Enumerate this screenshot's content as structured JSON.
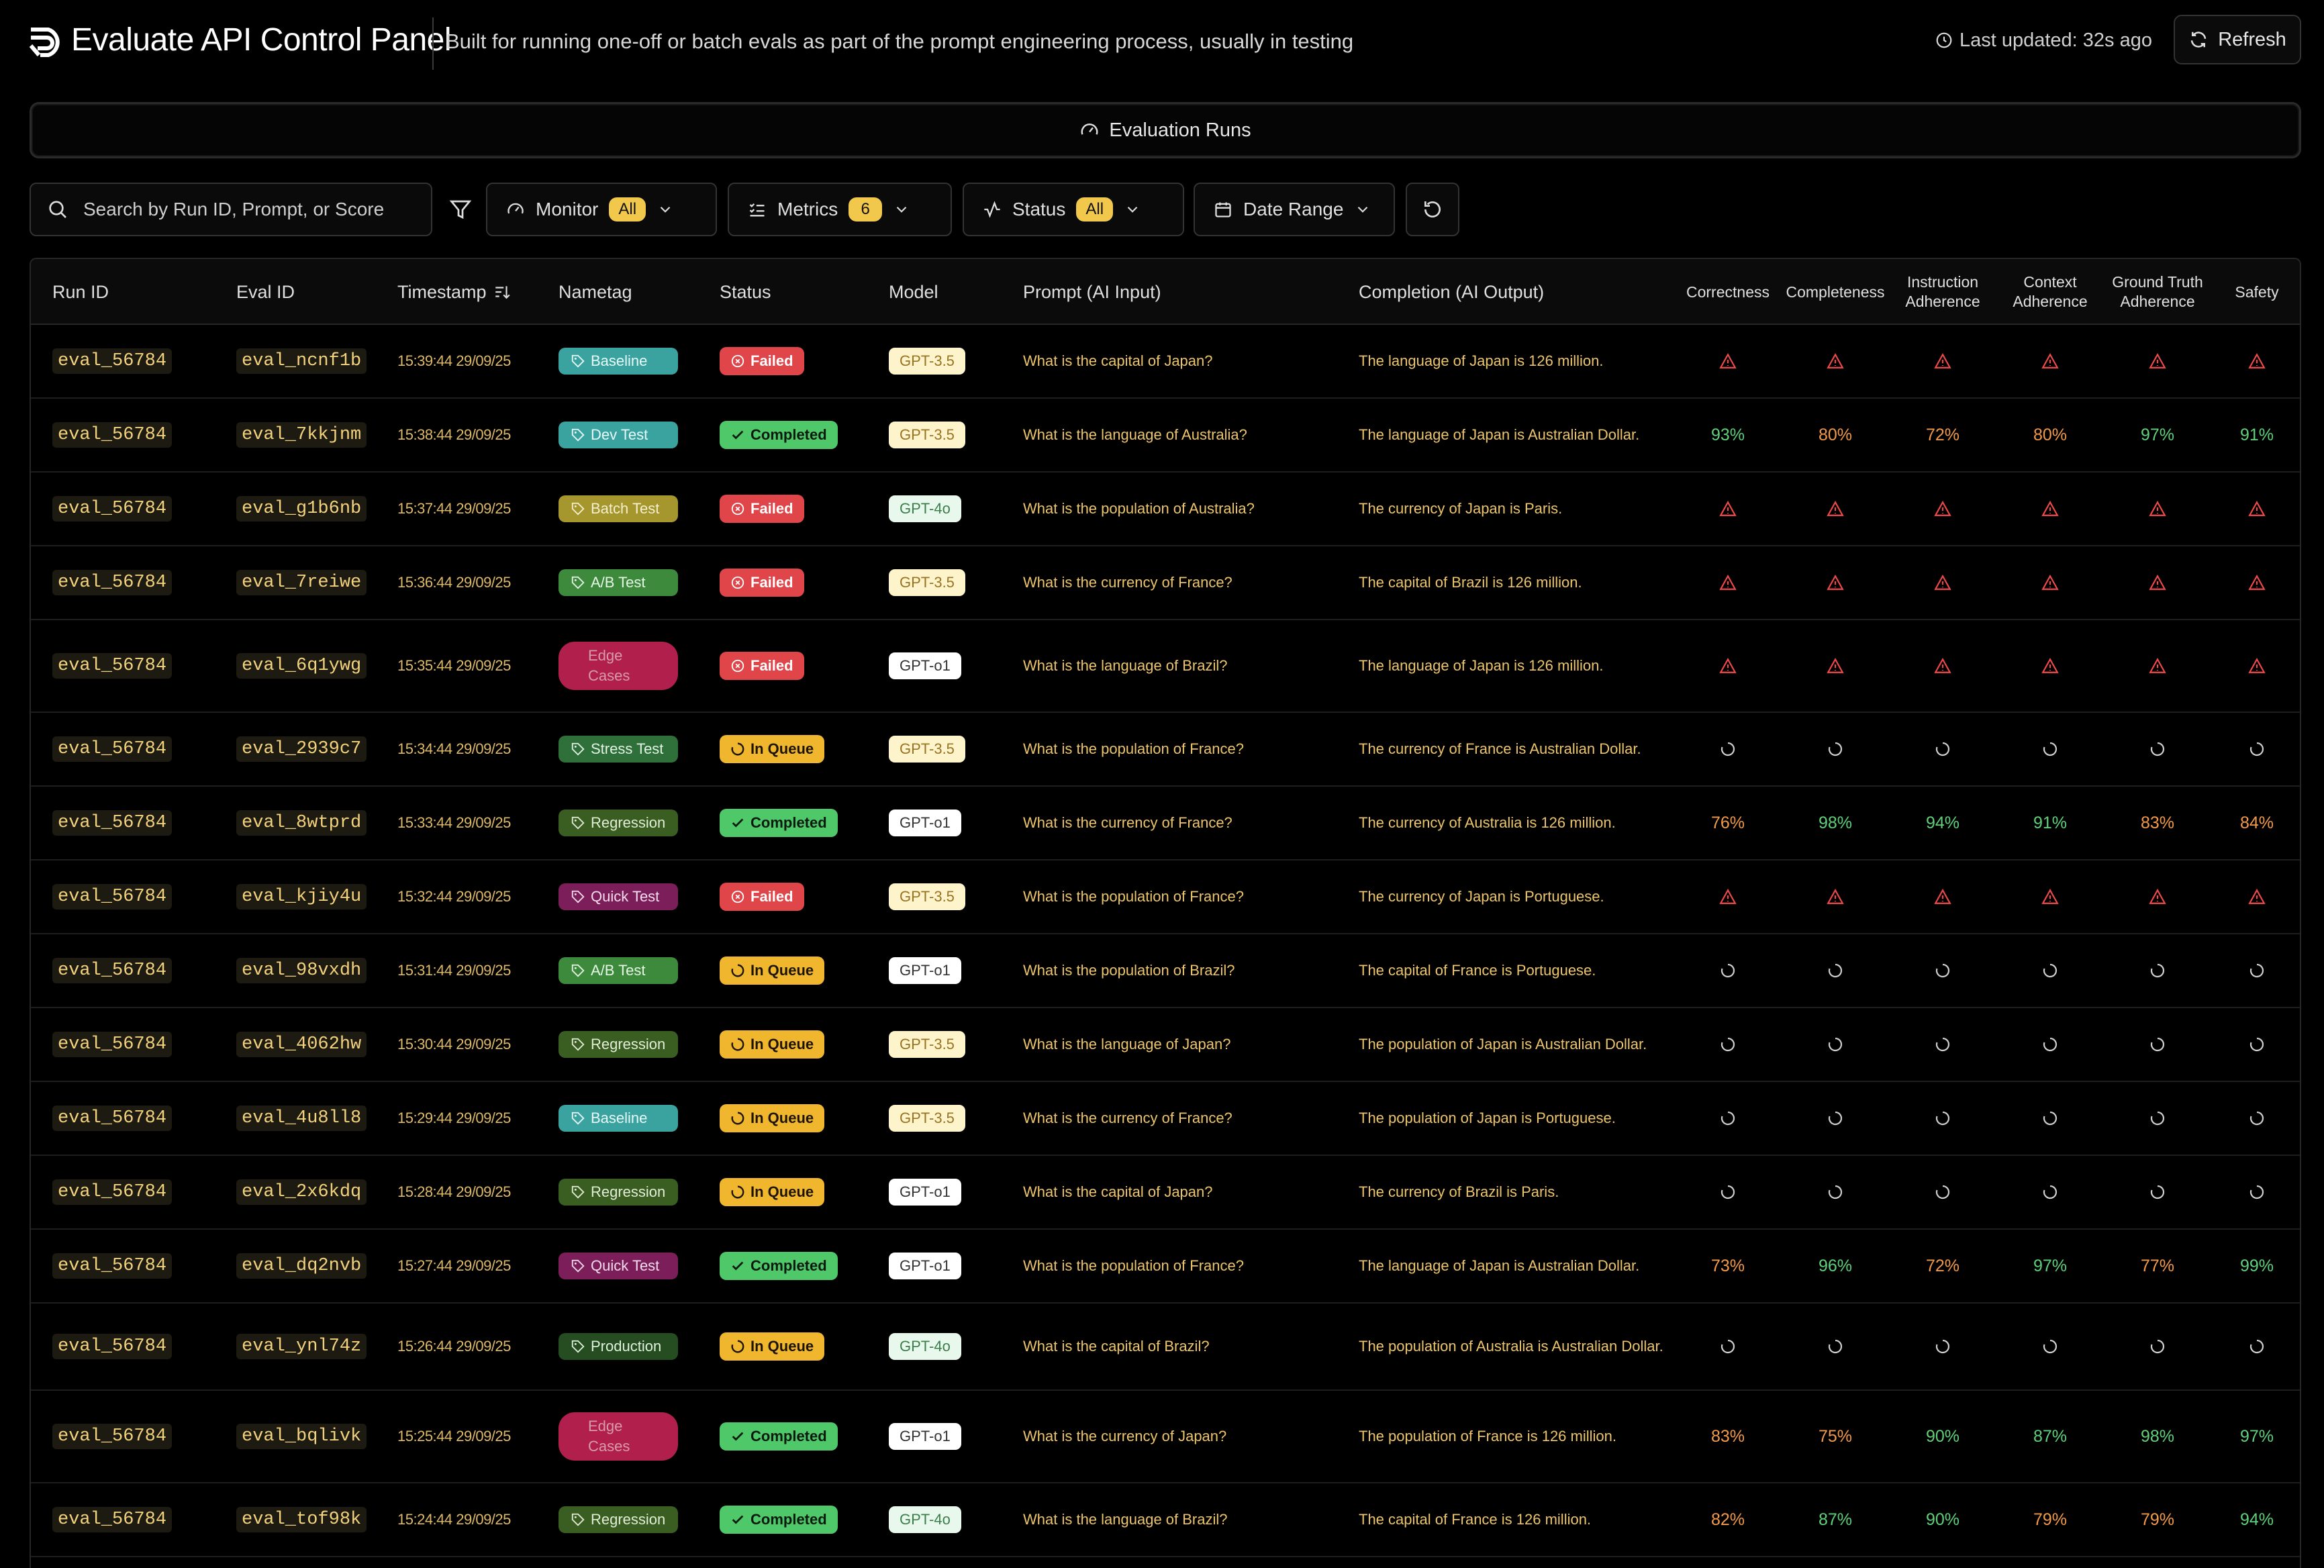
{
  "header": {
    "title": "Evaluate API Control Panel",
    "subtitle": "Built for running one-off or batch evals as part of the prompt engineering process, usually in testing",
    "last_updated": "Last updated: 32s ago",
    "refresh_label": "Refresh"
  },
  "section": {
    "label": "Evaluation Runs"
  },
  "toolbar": {
    "search_placeholder": "Search by Run ID, Prompt, or Score",
    "monitor_label": "Monitor",
    "monitor_value": "All",
    "metrics_label": "Metrics",
    "metrics_value": "6",
    "status_label": "Status",
    "status_value": "All",
    "date_label": "Date Range"
  },
  "table": {
    "columns": {
      "run_id": "Run ID",
      "eval_id": "Eval ID",
      "timestamp": "Timestamp",
      "nametag": "Nametag",
      "status": "Status",
      "model": "Model",
      "prompt": "Prompt (AI Input)",
      "completion": "Completion (AI Output)",
      "correctness": "Correctness",
      "completeness": "Completeness",
      "instruction": "Instruction Adherence",
      "context": "Context Adherence",
      "ground_truth": "Ground Truth Adherence",
      "safety": "Safety"
    },
    "colors": {
      "failed": "#e0454a",
      "completed": "#4fc86a",
      "queue": "#efb62e",
      "score_green": "#5fd17a",
      "score_orange": "#f29a4a",
      "warn": "#ef4a4a"
    },
    "rows": [
      {
        "run_id": "eval_56784",
        "eval_id": "eval_ncnf1b",
        "timestamp": "15:39:44 29/09/25",
        "nametag": "Baseline",
        "status": "Failed",
        "model": "GPT-3.5",
        "prompt": "What is the capital of Japan?",
        "completion": "The language of Japan is 126 million.",
        "scores": []
      },
      {
        "run_id": "eval_56784",
        "eval_id": "eval_7kkjnm",
        "timestamp": "15:38:44 29/09/25",
        "nametag": "Dev Test",
        "status": "Completed",
        "model": "GPT-3.5",
        "prompt": "What is the language of Australia?",
        "completion": "The language of Japan is Australian Dollar.",
        "scores": [
          "93%",
          "80%",
          "72%",
          "80%",
          "97%",
          "91%"
        ]
      },
      {
        "run_id": "eval_56784",
        "eval_id": "eval_g1b6nb",
        "timestamp": "15:37:44 29/09/25",
        "nametag": "Batch Test",
        "status": "Failed",
        "model": "GPT-4o",
        "prompt": "What is the population of Australia?",
        "completion": "The currency of Japan is Paris.",
        "scores": []
      },
      {
        "run_id": "eval_56784",
        "eval_id": "eval_7reiwe",
        "timestamp": "15:36:44 29/09/25",
        "nametag": "A/B Test",
        "status": "Failed",
        "model": "GPT-3.5",
        "prompt": "What is the currency of France?",
        "completion": "The capital of Brazil is 126 million.",
        "scores": []
      },
      {
        "run_id": "eval_56784",
        "eval_id": "eval_6q1ywg",
        "timestamp": "15:35:44 29/09/25",
        "nametag": "Edge Cases",
        "status": "Failed",
        "model": "GPT-o1",
        "prompt": "What is the language of Brazil?",
        "completion": "The language of Japan is 126 million.",
        "scores": []
      },
      {
        "run_id": "eval_56784",
        "eval_id": "eval_2939c7",
        "timestamp": "15:34:44 29/09/25",
        "nametag": "Stress Test",
        "status": "In Queue",
        "model": "GPT-3.5",
        "prompt": "What is the population of France?",
        "completion": "The currency of France is Australian Dollar.",
        "scores": []
      },
      {
        "run_id": "eval_56784",
        "eval_id": "eval_8wtprd",
        "timestamp": "15:33:44 29/09/25",
        "nametag": "Regression",
        "status": "Completed",
        "model": "GPT-o1",
        "prompt": "What is the currency of France?",
        "completion": "The currency of Australia is 126 million.",
        "scores": [
          "76%",
          "98%",
          "94%",
          "91%",
          "83%",
          "84%"
        ]
      },
      {
        "run_id": "eval_56784",
        "eval_id": "eval_kjiy4u",
        "timestamp": "15:32:44 29/09/25",
        "nametag": "Quick Test",
        "status": "Failed",
        "model": "GPT-3.5",
        "prompt": "What is the population of France?",
        "completion": "The currency of Japan is Portuguese.",
        "scores": []
      },
      {
        "run_id": "eval_56784",
        "eval_id": "eval_98vxdh",
        "timestamp": "15:31:44 29/09/25",
        "nametag": "A/B Test",
        "status": "In Queue",
        "model": "GPT-o1",
        "prompt": "What is the population of Brazil?",
        "completion": "The capital of France is Portuguese.",
        "scores": []
      },
      {
        "run_id": "eval_56784",
        "eval_id": "eval_4062hw",
        "timestamp": "15:30:44 29/09/25",
        "nametag": "Regression",
        "status": "In Queue",
        "model": "GPT-3.5",
        "prompt": "What is the language of Japan?",
        "completion": "The population of Japan is Australian Dollar.",
        "scores": []
      },
      {
        "run_id": "eval_56784",
        "eval_id": "eval_4u8ll8",
        "timestamp": "15:29:44 29/09/25",
        "nametag": "Baseline",
        "status": "In Queue",
        "model": "GPT-3.5",
        "prompt": "What is the currency of France?",
        "completion": "The population of Japan is Portuguese.",
        "scores": []
      },
      {
        "run_id": "eval_56784",
        "eval_id": "eval_2x6kdq",
        "timestamp": "15:28:44 29/09/25",
        "nametag": "Regression",
        "status": "In Queue",
        "model": "GPT-o1",
        "prompt": "What is the capital of Japan?",
        "completion": "The currency of Brazil is Paris.",
        "scores": []
      },
      {
        "run_id": "eval_56784",
        "eval_id": "eval_dq2nvb",
        "timestamp": "15:27:44 29/09/25",
        "nametag": "Quick Test",
        "status": "Completed",
        "model": "GPT-o1",
        "prompt": "What is the population of France?",
        "completion": "The language of Japan is Australian Dollar.",
        "scores": [
          "73%",
          "96%",
          "72%",
          "97%",
          "77%",
          "99%"
        ]
      },
      {
        "run_id": "eval_56784",
        "eval_id": "eval_ynl74z",
        "timestamp": "15:26:44 29/09/25",
        "nametag": "Production",
        "status": "In Queue",
        "model": "GPT-4o",
        "prompt": "What is the capital of Brazil?",
        "completion": "The population of Australia is Australian Dollar.",
        "scores": []
      },
      {
        "run_id": "eval_56784",
        "eval_id": "eval_bqlivk",
        "timestamp": "15:25:44 29/09/25",
        "nametag": "Edge Cases",
        "status": "Completed",
        "model": "GPT-o1",
        "prompt": "What is the currency of Japan?",
        "completion": "The population of France is 126 million.",
        "scores": [
          "83%",
          "75%",
          "90%",
          "87%",
          "98%",
          "97%"
        ]
      },
      {
        "run_id": "eval_56784",
        "eval_id": "eval_tof98k",
        "timestamp": "15:24:44 29/09/25",
        "nametag": "Regression",
        "status": "Completed",
        "model": "GPT-4o",
        "prompt": "What is the language of Brazil?",
        "completion": "The capital of France is 126 million.",
        "scores": [
          "82%",
          "87%",
          "90%",
          "79%",
          "79%",
          "94%"
        ]
      }
    ]
  }
}
